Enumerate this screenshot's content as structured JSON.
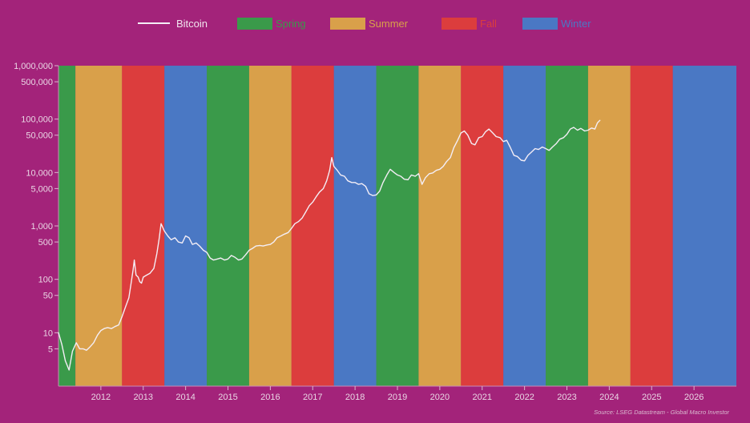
{
  "chart_data": {
    "type": "line",
    "y_scale": "log",
    "ylim": [
      1,
      1000000
    ],
    "y_ticks": [
      {
        "value": 1000000,
        "label": "1,000,000"
      },
      {
        "value": 500000,
        "label": "500,000"
      },
      {
        "value": 100000,
        "label": "100,000"
      },
      {
        "value": 50000,
        "label": "50,000"
      },
      {
        "value": 10000,
        "label": "10,000"
      },
      {
        "value": 5000,
        "label": "5,000"
      },
      {
        "value": 1000,
        "label": "1,000"
      },
      {
        "value": 500,
        "label": "500"
      },
      {
        "value": 100,
        "label": "100"
      },
      {
        "value": 50,
        "label": "50"
      },
      {
        "value": 10,
        "label": "10"
      },
      {
        "value": 5,
        "label": "5"
      }
    ],
    "xlim": [
      2011.0,
      2027.0
    ],
    "x_ticks": [
      "2012",
      "2013",
      "2014",
      "2015",
      "2016",
      "2017",
      "2018",
      "2019",
      "2020",
      "2021",
      "2022",
      "2023",
      "2024",
      "2025",
      "2026"
    ],
    "legend": {
      "position": "top",
      "items": [
        {
          "label": "Bitcoin",
          "kind": "line",
          "color": "#f4eef6"
        },
        {
          "label": "Spring",
          "kind": "box",
          "color": "#3a9a4a"
        },
        {
          "label": "Summer",
          "kind": "box",
          "color": "#d9a04a"
        },
        {
          "label": "Fall",
          "kind": "box",
          "color": "#dc3d3d"
        },
        {
          "label": "Winter",
          "kind": "box",
          "color": "#4a78c4"
        }
      ]
    },
    "season_colors": {
      "Spring": "#3a9a4a",
      "Summer": "#d9a04a",
      "Fall": "#dc3d3d",
      "Winter": "#4a78c4"
    },
    "seasons": [
      {
        "season": "Spring",
        "start": 2011.0,
        "end": 2011.4
      },
      {
        "season": "Summer",
        "start": 2011.4,
        "end": 2012.5
      },
      {
        "season": "Fall",
        "start": 2012.5,
        "end": 2013.5
      },
      {
        "season": "Winter",
        "start": 2013.5,
        "end": 2014.5
      },
      {
        "season": "Spring",
        "start": 2014.5,
        "end": 2015.5
      },
      {
        "season": "Summer",
        "start": 2015.5,
        "end": 2016.5
      },
      {
        "season": "Fall",
        "start": 2016.5,
        "end": 2017.5
      },
      {
        "season": "Winter",
        "start": 2017.5,
        "end": 2018.5
      },
      {
        "season": "Spring",
        "start": 2018.5,
        "end": 2019.5
      },
      {
        "season": "Summer",
        "start": 2019.5,
        "end": 2020.5
      },
      {
        "season": "Fall",
        "start": 2020.5,
        "end": 2021.5
      },
      {
        "season": "Winter",
        "start": 2021.5,
        "end": 2022.5
      },
      {
        "season": "Spring",
        "start": 2022.5,
        "end": 2023.5
      },
      {
        "season": "Summer",
        "start": 2023.5,
        "end": 2024.5
      },
      {
        "season": "Fall",
        "start": 2024.5,
        "end": 2025.5
      },
      {
        "season": "Winter",
        "start": 2025.5,
        "end": 2027.0
      }
    ],
    "series": [
      {
        "name": "Bitcoin",
        "color": "#f4eef6",
        "points": [
          [
            2011.0,
            10
          ],
          [
            2011.08,
            6
          ],
          [
            2011.16,
            3
          ],
          [
            2011.25,
            2
          ],
          [
            2011.33,
            4.5
          ],
          [
            2011.42,
            6.5
          ],
          [
            2011.5,
            5
          ],
          [
            2011.58,
            5
          ],
          [
            2011.66,
            4.7
          ],
          [
            2011.75,
            5.5
          ],
          [
            2011.83,
            6.5
          ],
          [
            2011.92,
            9
          ],
          [
            2012.0,
            11
          ],
          [
            2012.08,
            12
          ],
          [
            2012.16,
            12.5
          ],
          [
            2012.25,
            12
          ],
          [
            2012.33,
            13
          ],
          [
            2012.42,
            14
          ],
          [
            2012.5,
            20
          ],
          [
            2012.58,
            30
          ],
          [
            2012.66,
            45
          ],
          [
            2012.72,
            90
          ],
          [
            2012.76,
            150
          ],
          [
            2012.79,
            230
          ],
          [
            2012.83,
            120
          ],
          [
            2012.88,
            110
          ],
          [
            2012.92,
            90
          ],
          [
            2012.96,
            85
          ],
          [
            2013.0,
            110
          ],
          [
            2013.08,
            120
          ],
          [
            2013.16,
            130
          ],
          [
            2013.25,
            160
          ],
          [
            2013.32,
            300
          ],
          [
            2013.38,
            600
          ],
          [
            2013.42,
            1100
          ],
          [
            2013.5,
            800
          ],
          [
            2013.58,
            650
          ],
          [
            2013.66,
            550
          ],
          [
            2013.75,
            600
          ],
          [
            2013.83,
            500
          ],
          [
            2013.92,
            480
          ],
          [
            2014.0,
            650
          ],
          [
            2014.08,
            600
          ],
          [
            2014.16,
            450
          ],
          [
            2014.25,
            480
          ],
          [
            2014.33,
            420
          ],
          [
            2014.42,
            350
          ],
          [
            2014.5,
            320
          ],
          [
            2014.58,
            250
          ],
          [
            2014.66,
            230
          ],
          [
            2014.75,
            240
          ],
          [
            2014.83,
            250
          ],
          [
            2014.92,
            230
          ],
          [
            2015.0,
            240
          ],
          [
            2015.08,
            280
          ],
          [
            2015.16,
            260
          ],
          [
            2015.25,
            230
          ],
          [
            2015.33,
            240
          ],
          [
            2015.42,
            290
          ],
          [
            2015.5,
            350
          ],
          [
            2015.58,
            380
          ],
          [
            2015.66,
            420
          ],
          [
            2015.75,
            430
          ],
          [
            2015.83,
            420
          ],
          [
            2015.92,
            440
          ],
          [
            2016.0,
            450
          ],
          [
            2016.08,
            500
          ],
          [
            2016.16,
            600
          ],
          [
            2016.25,
            650
          ],
          [
            2016.33,
            700
          ],
          [
            2016.42,
            750
          ],
          [
            2016.5,
            900
          ],
          [
            2016.58,
            1100
          ],
          [
            2016.66,
            1200
          ],
          [
            2016.75,
            1400
          ],
          [
            2016.83,
            1800
          ],
          [
            2016.92,
            2400
          ],
          [
            2017.0,
            2800
          ],
          [
            2017.08,
            3500
          ],
          [
            2017.16,
            4300
          ],
          [
            2017.25,
            5000
          ],
          [
            2017.33,
            7000
          ],
          [
            2017.4,
            11000
          ],
          [
            2017.45,
            19000
          ],
          [
            2017.5,
            13000
          ],
          [
            2017.58,
            11000
          ],
          [
            2017.66,
            9000
          ],
          [
            2017.75,
            8500
          ],
          [
            2017.83,
            7000
          ],
          [
            2017.92,
            6500
          ],
          [
            2018.0,
            6500
          ],
          [
            2018.08,
            6000
          ],
          [
            2018.16,
            6200
          ],
          [
            2018.25,
            5500
          ],
          [
            2018.33,
            4000
          ],
          [
            2018.42,
            3700
          ],
          [
            2018.5,
            3800
          ],
          [
            2018.58,
            4500
          ],
          [
            2018.66,
            6500
          ],
          [
            2018.75,
            9000
          ],
          [
            2018.83,
            11500
          ],
          [
            2018.92,
            10000
          ],
          [
            2019.0,
            9000
          ],
          [
            2019.08,
            8500
          ],
          [
            2019.16,
            7500
          ],
          [
            2019.25,
            7300
          ],
          [
            2019.33,
            9000
          ],
          [
            2019.42,
            8500
          ],
          [
            2019.5,
            9500
          ],
          [
            2019.58,
            6000
          ],
          [
            2019.66,
            8000
          ],
          [
            2019.75,
            9500
          ],
          [
            2019.83,
            9800
          ],
          [
            2019.92,
            11000
          ],
          [
            2020.0,
            11500
          ],
          [
            2020.08,
            13000
          ],
          [
            2020.16,
            16000
          ],
          [
            2020.25,
            19000
          ],
          [
            2020.33,
            29000
          ],
          [
            2020.42,
            40000
          ],
          [
            2020.5,
            55000
          ],
          [
            2020.58,
            60000
          ],
          [
            2020.66,
            50000
          ],
          [
            2020.75,
            35000
          ],
          [
            2020.83,
            33000
          ],
          [
            2020.92,
            45000
          ],
          [
            2021.0,
            47000
          ],
          [
            2021.08,
            58000
          ],
          [
            2021.16,
            65000
          ],
          [
            2021.25,
            55000
          ],
          [
            2021.33,
            47000
          ],
          [
            2021.42,
            45000
          ],
          [
            2021.5,
            38000
          ],
          [
            2021.58,
            40000
          ],
          [
            2021.66,
            30000
          ],
          [
            2021.75,
            21000
          ],
          [
            2021.83,
            20000
          ],
          [
            2021.92,
            17000
          ],
          [
            2022.0,
            16500
          ],
          [
            2022.08,
            21000
          ],
          [
            2022.16,
            24000
          ],
          [
            2022.25,
            28000
          ],
          [
            2022.33,
            27000
          ],
          [
            2022.42,
            30000
          ],
          [
            2022.5,
            28000
          ],
          [
            2022.58,
            26000
          ],
          [
            2022.66,
            30000
          ],
          [
            2022.75,
            35000
          ],
          [
            2022.83,
            42000
          ],
          [
            2022.92,
            45000
          ],
          [
            2023.0,
            52000
          ],
          [
            2023.08,
            65000
          ],
          [
            2023.16,
            70000
          ],
          [
            2023.25,
            62000
          ],
          [
            2023.33,
            67000
          ],
          [
            2023.42,
            60000
          ],
          [
            2023.5,
            62000
          ],
          [
            2023.58,
            68000
          ],
          [
            2023.66,
            65000
          ],
          [
            2023.72,
            85000
          ],
          [
            2023.78,
            95000
          ]
        ]
      }
    ],
    "source": "Source: LSEG Datastream - Global Macro Investor"
  }
}
